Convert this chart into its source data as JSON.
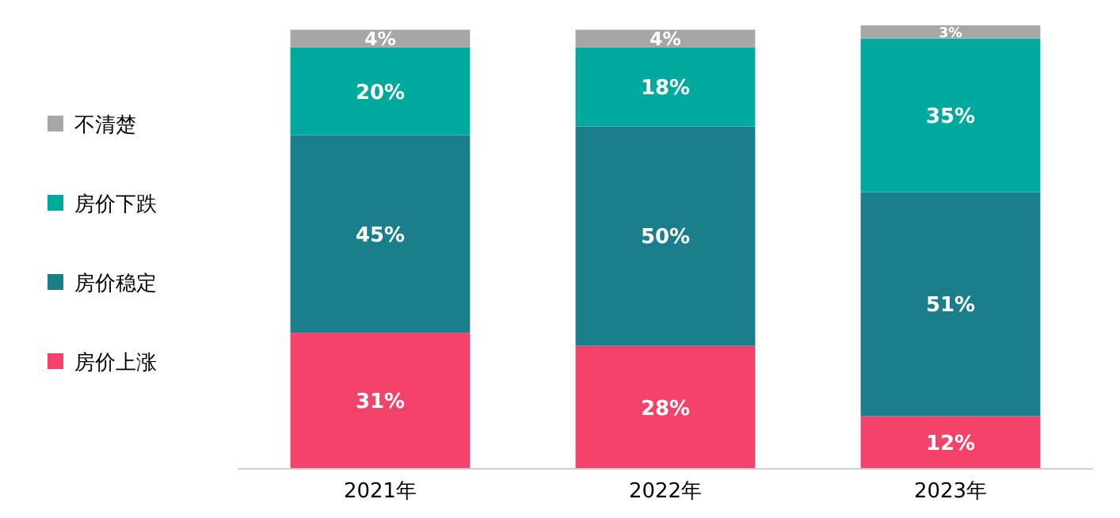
{
  "chart_data": {
    "type": "bar",
    "stacked": true,
    "categories": [
      "2021年",
      "2022年",
      "2023年"
    ],
    "series": [
      {
        "name": "房价上涨",
        "color": "#f4436a",
        "values": [
          31,
          28,
          12
        ],
        "value_labels": [
          "31%",
          "28%",
          "12%"
        ]
      },
      {
        "name": "房价稳定",
        "color": "#1a7f8a",
        "values": [
          45,
          50,
          51
        ],
        "value_labels": [
          "45%",
          "50%",
          "51%"
        ]
      },
      {
        "name": "房价下跌",
        "color": "#00a99d",
        "values": [
          20,
          18,
          35
        ],
        "value_labels": [
          "20%",
          "18%",
          "35%"
        ]
      },
      {
        "name": "不清楚",
        "color": "#a6a6a6",
        "values": [
          4,
          4,
          3
        ],
        "value_labels": [
          "4%",
          "4%",
          "3%"
        ]
      }
    ],
    "legend": "left"
  }
}
